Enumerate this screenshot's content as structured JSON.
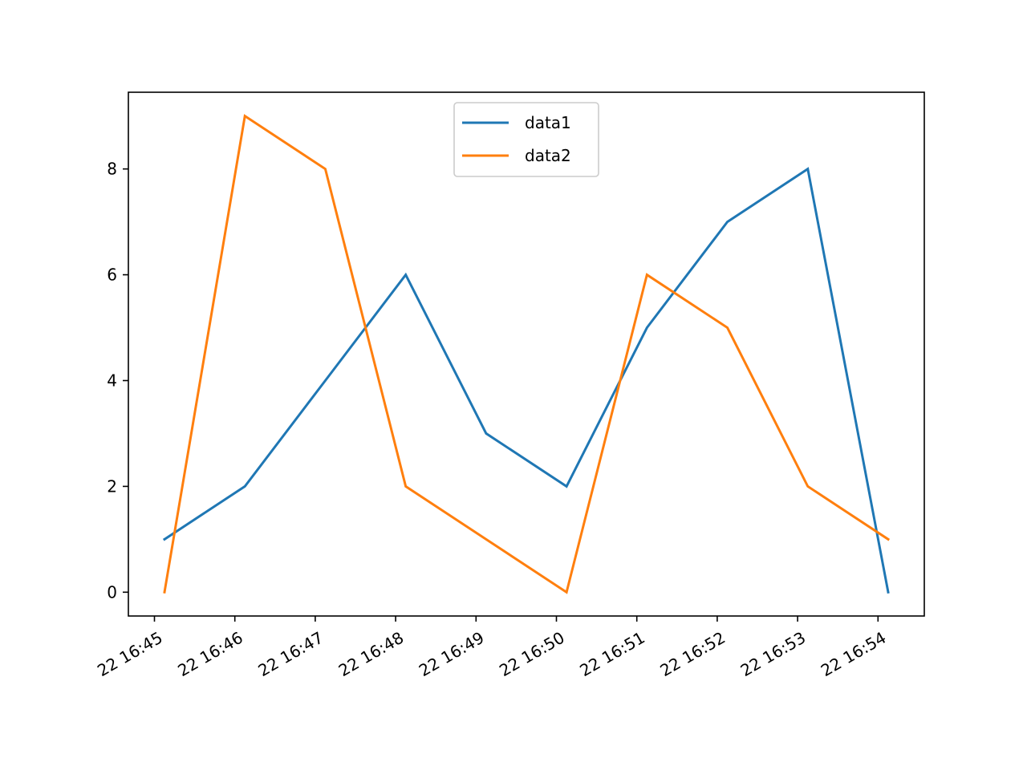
{
  "chart_data": {
    "type": "line",
    "title": "",
    "xlabel": "",
    "ylabel": "",
    "x": [
      "22 16:45:08",
      "22 16:46:08",
      "22 16:47:08",
      "22 16:48:08",
      "22 16:49:08",
      "22 16:50:08",
      "22 16:51:08",
      "22 16:52:08",
      "22 16:53:08",
      "22 16:54:08"
    ],
    "x_tick_labels": [
      "22 16:45",
      "22 16:46",
      "22 16:47",
      "22 16:48",
      "22 16:49",
      "22 16:50",
      "22 16:51",
      "22 16:52",
      "22 16:53",
      "22 16:54"
    ],
    "y_ticks": [
      0,
      2,
      4,
      6,
      8
    ],
    "ylim": [
      -0.45,
      9.45
    ],
    "grid": false,
    "legend_position": "top-center",
    "series": [
      {
        "name": "data1",
        "color": "#1f77b4",
        "values": [
          1,
          2,
          4,
          6,
          3,
          2,
          5,
          7,
          8,
          0
        ]
      },
      {
        "name": "data2",
        "color": "#ff7f0e",
        "values": [
          0,
          9,
          8,
          2,
          1,
          0,
          6,
          5,
          2,
          1
        ]
      }
    ]
  }
}
